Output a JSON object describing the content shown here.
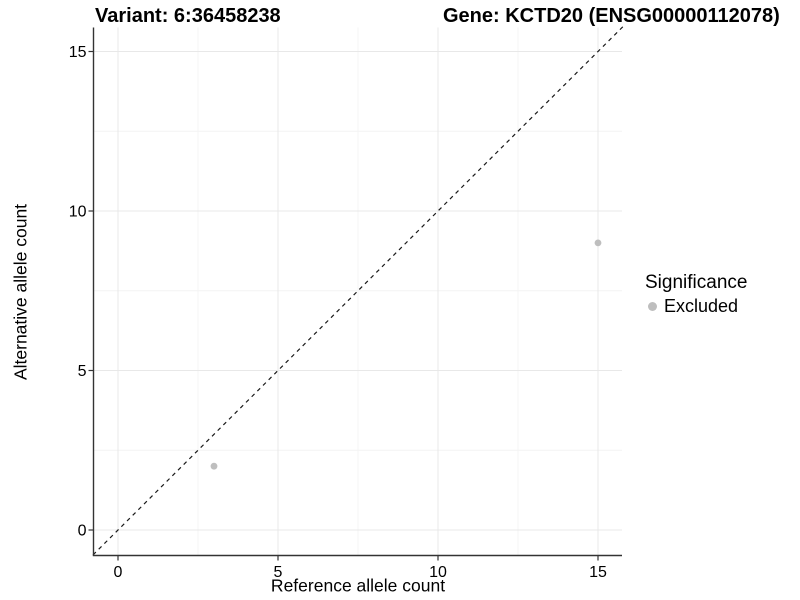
{
  "chart_data": {
    "type": "scatter",
    "title_variant": "Variant: 6:36458238",
    "title_gene": "Gene: KCTD20 (ENSG00000112078)",
    "xlabel": "Reference allele count",
    "ylabel": "Alternative allele count",
    "x_ticks": [
      0,
      5,
      10,
      15
    ],
    "y_ticks": [
      0,
      5,
      10,
      15
    ],
    "minor_ticks": [
      2.5,
      7.5,
      12.5
    ],
    "xlim": [
      -0.78,
      15.78
    ],
    "ylim": [
      -0.78,
      15.78
    ],
    "grid": {
      "major": true,
      "minor": true,
      "major_color": "#e8e8e8",
      "minor_color": "#f4f4f4"
    },
    "axis_color": "#333333",
    "tick_label_color": "#000000",
    "identity_line": {
      "slope": 1,
      "intercept": 0,
      "style": "dashed",
      "color": "#1a1a1a"
    },
    "series": [
      {
        "name": "Excluded",
        "color": "#bebebe",
        "points": [
          {
            "x": 3,
            "y": 2
          },
          {
            "x": 15,
            "y": 9
          }
        ]
      }
    ],
    "legend": {
      "title": "Significance",
      "position": "right",
      "entries": [
        {
          "label": "Excluded",
          "color": "#bebebe"
        }
      ]
    }
  }
}
